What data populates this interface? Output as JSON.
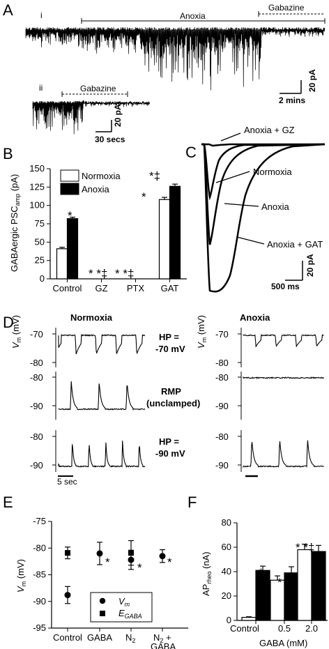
{
  "panel_a": {
    "letter": "A",
    "sub_i": "i",
    "sub_ii": "ii",
    "anoxia_label": "Anoxia",
    "gabazine_label": "Gabazine",
    "gabazine_label_ii": "Gabazine",
    "scale_i_y": "20 pA",
    "scale_i_x": "2 mins",
    "scale_ii_y": "20 pA",
    "scale_ii_x": "30 secs"
  },
  "panel_b": {
    "letter": "B",
    "legend": [
      "Normoxia",
      "Anoxia"
    ],
    "ylabel": "GABAergic PSC",
    "ylabel_sub": "amp",
    "ylabel_unit": " (pA)",
    "sig": {
      "control_anoxia": "*",
      "gz": "* *‡",
      "ptx": "* *‡",
      "gat": "*",
      "gat_anoxia": "*‡"
    }
  },
  "panel_c": {
    "letter": "C",
    "labels": [
      "Anoxia + GZ",
      "Normoxia",
      "Anoxia",
      "Anoxia + GAT"
    ],
    "scale_y": "20 pA",
    "scale_x": "500 ms"
  },
  "panel_d": {
    "letter": "D",
    "col_normoxia": "Normoxia",
    "col_anoxia": "Anoxia",
    "vm_label": "V",
    "vm_sub": "m",
    "vm_unit": " (mV)",
    "hp1_a": "HP =",
    "hp1_b": "-70 mV",
    "rmp_a": "RMP",
    "rmp_b": "(unclamped)",
    "hp2_a": "HP =",
    "hp2_b": "-90 mV",
    "scale_x": "5 sec",
    "ticks_row1": [
      "-70",
      "-80"
    ],
    "ticks_row2": [
      "-80",
      "-90"
    ],
    "ticks_row3": [
      "-80",
      "-90"
    ]
  },
  "panel_e": {
    "letter": "E",
    "ylabel": "V",
    "ylabel_sub": "m",
    "ylabel_unit": " (mV)",
    "legend_vm": "V",
    "legend_vm_sub": "m",
    "legend_egaba": "E",
    "legend_egaba_sub": "GABA",
    "star": "*",
    "tick_extra_1": "N",
    "tick_extra_1_sub": "2",
    "tick_extra_2": "N",
    "tick_extra_2_sub": "2",
    "tick_extra_2b": " +",
    "tick_extra_2c": "GABA"
  },
  "panel_f": {
    "letter": "F",
    "ylabel": "AP",
    "ylabel_sub": "rheo",
    "ylabel_unit": " (nA)",
    "xlabel": "GABA (mM)",
    "sig_control": "*",
    "sig_05_n": "*",
    "sig_05_a": "*",
    "sig_20": "* *‡"
  },
  "chart_data": [
    {
      "type": "bar",
      "panel": "B",
      "categories": [
        "Control",
        "GZ",
        "PTX",
        "GAT"
      ],
      "series": [
        {
          "name": "Normoxia",
          "values": [
            41,
            0,
            0,
            108
          ],
          "errors": [
            2,
            0,
            0,
            3
          ],
          "color": "#ffffff"
        },
        {
          "name": "Anoxia",
          "values": [
            82,
            0,
            0,
            126
          ],
          "errors": [
            2,
            0,
            0,
            3
          ],
          "color": "#000000"
        }
      ],
      "ylabel": "GABAergic PSCamp (pA)",
      "ylim": [
        0,
        150
      ],
      "yticks": [
        0,
        25,
        50,
        75,
        100,
        125,
        150
      ],
      "legend": "top-left"
    },
    {
      "type": "scatter",
      "panel": "E",
      "categories": [
        "Control",
        "GABA",
        "N2",
        "N2 + GABA"
      ],
      "category_labels": [
        "Control",
        "GABA",
        "",
        ""
      ],
      "series": [
        {
          "name": "Vm",
          "marker": "circle",
          "values": [
            -88.8,
            -81.0,
            -82.2,
            -81.5
          ],
          "errors": [
            1.6,
            2.1,
            1.8,
            1.2
          ]
        },
        {
          "name": "EGABA",
          "marker": "square",
          "values": [
            -80.9,
            null,
            -80.9,
            null
          ],
          "errors": [
            1.1,
            null,
            2.3,
            null
          ]
        }
      ],
      "ylabel": "Vm (mV)",
      "ylim": [
        -95,
        -75
      ],
      "yticks": [
        -95,
        -90,
        -85,
        -80,
        -75
      ]
    },
    {
      "type": "bar",
      "panel": "F",
      "categories": [
        "Control",
        "0.5",
        "2.0"
      ],
      "series": [
        {
          "name": "Normoxia",
          "values": [
            2.5,
            33,
            58
          ],
          "errors": [
            0.5,
            3.5,
            4.5
          ],
          "color": "#ffffff"
        },
        {
          "name": "Anoxia",
          "values": [
            41,
            39,
            56.5
          ],
          "errors": [
            3.5,
            5,
            5
          ],
          "color": "#000000"
        }
      ],
      "ylabel": "APrheo (nA)",
      "xlabel": "GABA (mM)",
      "ylim": [
        0,
        80
      ],
      "yticks": [
        0,
        20,
        40,
        60,
        80
      ]
    }
  ]
}
